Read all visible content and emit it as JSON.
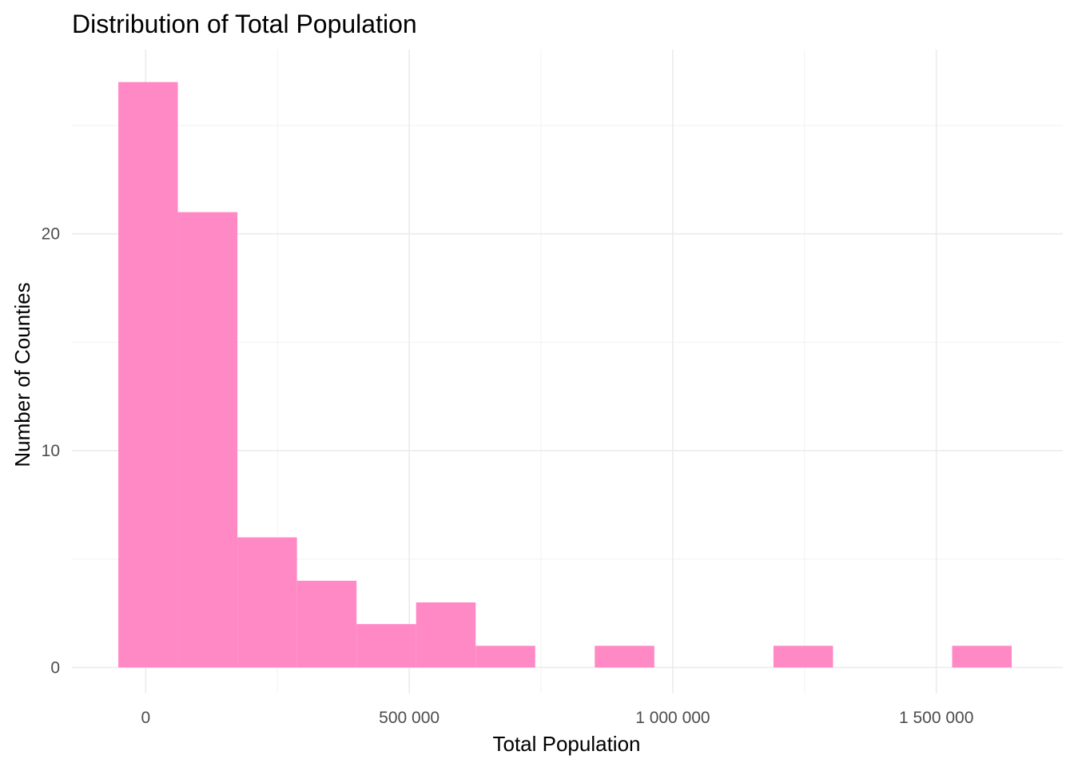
{
  "chart_data": {
    "type": "bar",
    "title": "Distribution of Total Population",
    "xlabel": "Total Population",
    "ylabel": "Number of Counties",
    "bar_color": "#ff89c4",
    "grid_major_color": "#ebebeb",
    "grid_minor_color": "#f2f2f2",
    "grid": true,
    "x_ticks": [
      {
        "value": 0,
        "label": "0"
      },
      {
        "value": 500000,
        "label": "500 000"
      },
      {
        "value": 1000000,
        "label": "1 000 000"
      },
      {
        "value": 1500000,
        "label": "1 500 000"
      }
    ],
    "y_ticks": [
      {
        "value": 0,
        "label": "0"
      },
      {
        "value": 10,
        "label": "10"
      },
      {
        "value": 20,
        "label": "20"
      }
    ],
    "xlim": [
      -140000,
      1740000
    ],
    "ylim": [
      -1.2,
      28.5
    ],
    "bins": [
      {
        "x0": -52000,
        "x1": 61000,
        "count": 27
      },
      {
        "x0": 61000,
        "x1": 174000,
        "count": 21
      },
      {
        "x0": 174000,
        "x1": 287000,
        "count": 6
      },
      {
        "x0": 287000,
        "x1": 400000,
        "count": 4
      },
      {
        "x0": 400000,
        "x1": 513000,
        "count": 2
      },
      {
        "x0": 513000,
        "x1": 626000,
        "count": 3
      },
      {
        "x0": 626000,
        "x1": 739000,
        "count": 1
      },
      {
        "x0": 739000,
        "x1": 852000,
        "count": 0
      },
      {
        "x0": 852000,
        "x1": 965000,
        "count": 1
      },
      {
        "x0": 965000,
        "x1": 1078000,
        "count": 0
      },
      {
        "x0": 1078000,
        "x1": 1191000,
        "count": 0
      },
      {
        "x0": 1191000,
        "x1": 1304000,
        "count": 1
      },
      {
        "x0": 1304000,
        "x1": 1417000,
        "count": 0
      },
      {
        "x0": 1417000,
        "x1": 1530000,
        "count": 0
      },
      {
        "x0": 1530000,
        "x1": 1643000,
        "count": 1
      }
    ]
  }
}
